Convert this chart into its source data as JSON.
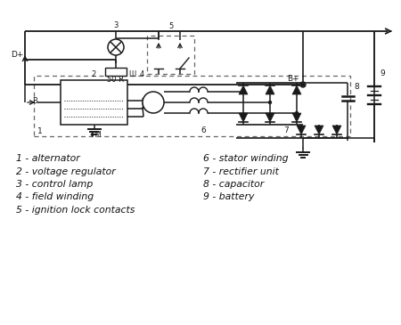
{
  "bg_color": "#ffffff",
  "line_color": "#1a1a1a",
  "legend_items_left": [
    "1 - alternator",
    "2 - voltage regulator",
    "3 - control lamp",
    "4 - field winding",
    "5 - ignition lock contacts"
  ],
  "legend_items_right": [
    "6 - stator winding",
    "7 - rectifier unit",
    "8 - capacitor",
    "9 - battery"
  ]
}
